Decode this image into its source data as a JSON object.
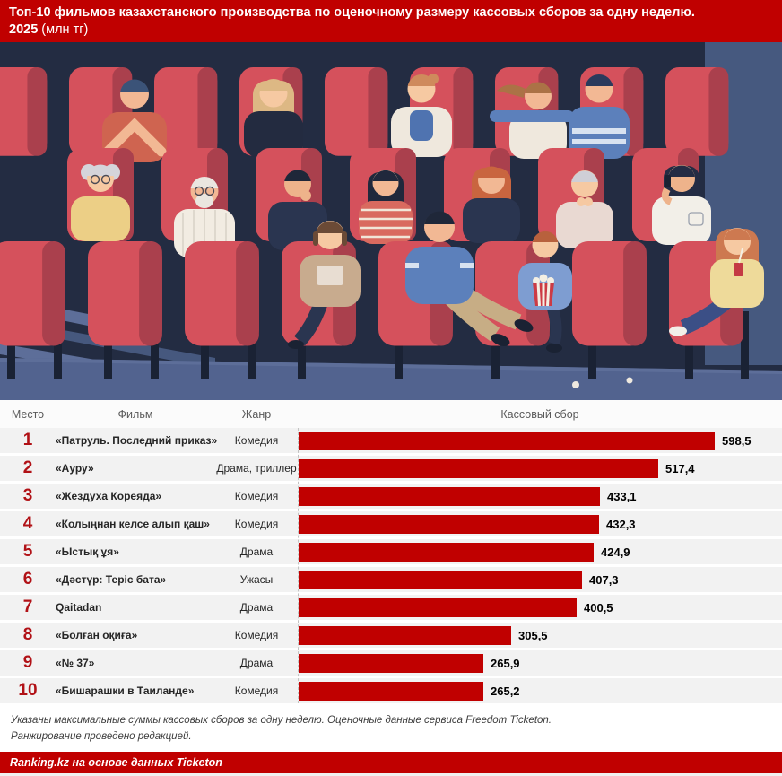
{
  "title": {
    "line1": "Топ-10 фильмов казахстанского производства по оценочному размеру кассовых сборов за одну неделю.",
    "year": "2025",
    "unit": "(млн тг)"
  },
  "table": {
    "headers": {
      "place": "Место",
      "film": "Фильм",
      "genre": "Жанр",
      "box_office": "Кассовый сбор"
    },
    "rows": [
      {
        "place": "1",
        "film": "«Патруль. Последний приказ»",
        "genre": "Комедия",
        "value": 598.5,
        "value_display": "598,5"
      },
      {
        "place": "2",
        "film": "«Ауру»",
        "genre": "Драма, триллер",
        "value": 517.4,
        "value_display": "517,4"
      },
      {
        "place": "3",
        "film": "«Жездуха Кореяда»",
        "genre": "Комедия",
        "value": 433.1,
        "value_display": "433,1"
      },
      {
        "place": "4",
        "film": "«Колыңнан келсе алып қаш»",
        "genre": "Комедия",
        "value": 432.3,
        "value_display": "432,3"
      },
      {
        "place": "5",
        "film": "«Ыстық ұя»",
        "genre": "Драма",
        "value": 424.9,
        "value_display": "424,9"
      },
      {
        "place": "6",
        "film": "«Дәстүр: Теріс бата»",
        "genre": "Ужасы",
        "value": 407.3,
        "value_display": "407,3"
      },
      {
        "place": "7",
        "film": "Qaitadan",
        "genre": "Драма",
        "value": 400.5,
        "value_display": "400,5"
      },
      {
        "place": "8",
        "film": "«Болған оқиға»",
        "genre": "Комедия",
        "value": 305.5,
        "value_display": "305,5"
      },
      {
        "place": "9",
        "film": "«№ 37»",
        "genre": "Драма",
        "value": 265.9,
        "value_display": "265,9"
      },
      {
        "place": "10",
        "film": "«Бишарашки в Таиланде»",
        "genre": "Комедия",
        "value": 265.2,
        "value_display": "265,2"
      }
    ]
  },
  "chart_data": {
    "type": "bar",
    "orientation": "horizontal",
    "title": "Топ-10 фильмов казахстанского производства по оценочному размеру кассовых сборов за одну неделю. 2025 (млн тг)",
    "categories": [
      "«Патруль. Последний приказ»",
      "«Ауру»",
      "«Жездуха Кореяда»",
      "«Колыңнан келсе алып қаш»",
      "«Ыстық ұя»",
      "«Дәстүр: Теріс бата»",
      "Qaitadan",
      "«Болған оқиға»",
      "«№ 37»",
      "«Бишарашки в Таиланде»"
    ],
    "genres": [
      "Комедия",
      "Драма, триллер",
      "Комедия",
      "Комедия",
      "Драма",
      "Ужасы",
      "Драма",
      "Комедия",
      "Драма",
      "Комедия"
    ],
    "values": [
      598.5,
      517.4,
      433.1,
      432.3,
      424.9,
      407.3,
      400.5,
      305.5,
      265.9,
      265.2
    ],
    "xlabel": "Кассовый сбор",
    "unit": "млн тг",
    "xlim": [
      0,
      620
    ],
    "bar_color": "#c00000",
    "value_labels": [
      "598,5",
      "517,4",
      "433,1",
      "432,3",
      "424,9",
      "407,3",
      "400,5",
      "305,5",
      "265,9",
      "265,2"
    ]
  },
  "footnote": {
    "line1": "Указаны максимальные суммы кассовых сборов за одну неделю. Оценочные данные сервиса Freedom Ticketon.",
    "line2": "Ранжирование проведено редакцией."
  },
  "footer": {
    "credit": "Ranking.kz на основе данных Ticketon"
  },
  "colors": {
    "accent_red": "#c00000",
    "place_number_red": "#b11116",
    "row_bg": "#f2f2f2",
    "illustration_bg": "#232c42",
    "seat_red": "#d5515c",
    "seat_shadow": "#aa404d",
    "floor_blue": "#52638f",
    "wall_blue": "#46597f"
  }
}
